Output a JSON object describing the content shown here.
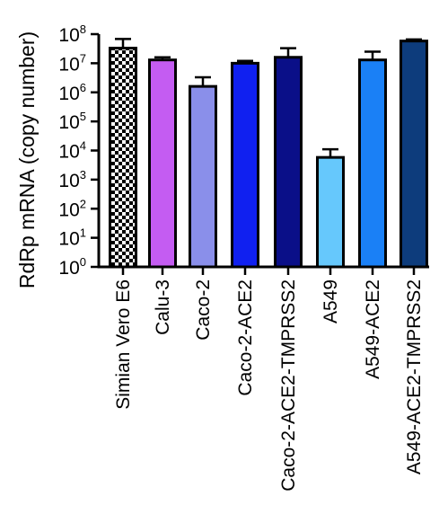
{
  "chart_data": {
    "type": "bar",
    "title": "",
    "xlabel": "",
    "ylabel": "RdRp mRNA (copy number)",
    "yscale": "log",
    "ylim": [
      1,
      100000000
    ],
    "yticks": [
      {
        "base": "10",
        "exp": "0"
      },
      {
        "base": "10",
        "exp": "1"
      },
      {
        "base": "10",
        "exp": "2"
      },
      {
        "base": "10",
        "exp": "3"
      },
      {
        "base": "10",
        "exp": "4"
      },
      {
        "base": "10",
        "exp": "5"
      },
      {
        "base": "10",
        "exp": "6"
      },
      {
        "base": "10",
        "exp": "7"
      },
      {
        "base": "10",
        "exp": "8"
      }
    ],
    "categories": [
      "Simian Vero E6",
      "Calu-3",
      "Caco-2",
      "Caco-2-ACE2",
      "Caco-2-ACE2-TMPRSS2",
      "A549",
      "A549-ACE2",
      "A549-ACE2-TMPRSS2"
    ],
    "values": [
      33000000,
      13000000,
      1600000,
      10000000,
      16000000,
      5800,
      13000000,
      58000000
    ],
    "error_upper": [
      68000000,
      16000000,
      3300000,
      12000000,
      33000000,
      11000,
      25000000,
      66000000
    ],
    "colors": [
      "checkerboard",
      "#c45cf2",
      "#8a8fea",
      "#1020f0",
      "#0a0f88",
      "#66c8fc",
      "#1a80f6",
      "#0d3c7c"
    ],
    "grid": false,
    "legend": "none"
  }
}
